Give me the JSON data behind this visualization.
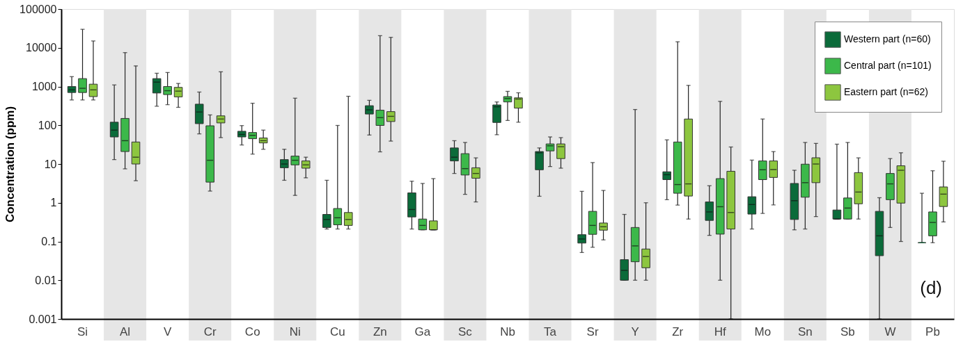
{
  "chart_data": {
    "type": "box",
    "ylabel": "Concentration (ppm)",
    "log": true,
    "grid": false,
    "legend": "top right",
    "ylim": [
      0.001,
      100000
    ],
    "yticks": [
      0.001,
      0.01,
      0.1,
      1,
      10,
      100,
      1000,
      10000,
      100000
    ],
    "categories": [
      "Si",
      "Al",
      "V",
      "Cr",
      "Co",
      "Ni",
      "Cu",
      "Zn",
      "Ga",
      "Sc",
      "Nb",
      "Ta",
      "Sr",
      "Y",
      "Zr",
      "Hf",
      "Mo",
      "Sn",
      "Sb",
      "W",
      "Pb"
    ],
    "bands": [
      {
        "axis": "x",
        "from": "Al",
        "to": "Al",
        "color": "#e6e6e6"
      },
      {
        "axis": "x",
        "from": "Cr",
        "to": "Cr",
        "color": "#e6e6e6"
      },
      {
        "axis": "x",
        "from": "Ni",
        "to": "Ni",
        "color": "#e6e6e6"
      },
      {
        "axis": "x",
        "from": "Zn",
        "to": "Zn",
        "color": "#e6e6e6"
      },
      {
        "axis": "x",
        "from": "Sc",
        "to": "Sc",
        "color": "#e6e6e6"
      },
      {
        "axis": "x",
        "from": "Ta",
        "to": "Ta",
        "color": "#e6e6e6"
      },
      {
        "axis": "x",
        "from": "Y",
        "to": "Y",
        "color": "#e6e6e6"
      },
      {
        "axis": "x",
        "from": "Hf",
        "to": "Hf",
        "color": "#e6e6e6"
      },
      {
        "axis": "x",
        "from": "Sn",
        "to": "Sn",
        "color": "#e6e6e6"
      },
      {
        "axis": "x",
        "from": "W",
        "to": "W",
        "color": "#e6e6e6"
      }
    ],
    "annotations": [
      "(d)"
    ],
    "series": [
      {
        "name": "Western part (n=60)",
        "color": "#0b6b3a",
        "boxes": [
          {
            "low": 450,
            "q1": 700,
            "median": 820,
            "q3": 1000,
            "high": 1800
          },
          {
            "low": 13,
            "q1": 50,
            "median": 75,
            "q3": 120,
            "high": 1100
          },
          {
            "low": 310,
            "q1": 680,
            "median": 1300,
            "q3": 1600,
            "high": 2200
          },
          {
            "low": 60,
            "q1": 110,
            "median": 220,
            "q3": 350,
            "high": 720
          },
          {
            "low": 31,
            "q1": 50,
            "median": 58,
            "q3": 70,
            "high": 98
          },
          {
            "low": 3.8,
            "q1": 8,
            "median": 10,
            "q3": 13,
            "high": 24
          },
          {
            "low": 0.21,
            "q1": 0.23,
            "median": 0.37,
            "q3": 0.5,
            "high": 3.8
          },
          {
            "low": 56,
            "q1": 195,
            "median": 250,
            "q3": 320,
            "high": 440
          },
          {
            "low": 0.21,
            "q1": 0.43,
            "median": 0.67,
            "q3": 1.8,
            "high": 3.6
          },
          {
            "low": 5.7,
            "q1": 12,
            "median": 15,
            "q3": 26,
            "high": 40
          },
          {
            "low": 57,
            "q1": 118,
            "median": 300,
            "q3": 335,
            "high": 400
          },
          {
            "low": 1.47,
            "q1": 7.1,
            "median": 19.5,
            "q3": 21,
            "high": 26
          },
          {
            "low": 0.052,
            "q1": 0.091,
            "median": 0.116,
            "q3": 0.15,
            "high": 1.97
          },
          {
            "low": 0.01,
            "q1": 0.01,
            "median": 0.018,
            "q3": 0.034,
            "high": 0.5
          },
          {
            "low": 1.2,
            "q1": 3.95,
            "median": 5.3,
            "q3": 6.3,
            "high": 42
          },
          {
            "low": 0.144,
            "q1": 0.35,
            "median": 0.58,
            "q3": 1.05,
            "high": 2.75
          },
          {
            "low": 0.21,
            "q1": 0.51,
            "median": 0.9,
            "q3": 1.43,
            "high": 12.6
          },
          {
            "low": 0.2,
            "q1": 0.37,
            "median": 1.13,
            "q3": 3.15,
            "high": 6.9
          },
          {
            "low": 0.38,
            "q1": 0.38,
            "median": 0.38,
            "q3": 0.65,
            "high": 32.5
          },
          {
            "low": 0.001,
            "q1": 0.043,
            "median": 0.14,
            "q3": 0.6,
            "high": 1.35
          },
          {
            "low": 0.093,
            "q1": 0.093,
            "median": 0.093,
            "q3": 0.093,
            "high": 1.76
          }
        ]
      },
      {
        "name": "Central part (n=101)",
        "color": "#3cb84a",
        "boxes": [
          {
            "low": 450,
            "q1": 700,
            "median": 900,
            "q3": 1600,
            "high": 30000
          },
          {
            "low": 7.5,
            "q1": 21,
            "median": 40,
            "q3": 150,
            "high": 7500
          },
          {
            "low": 340,
            "q1": 620,
            "median": 780,
            "q3": 1000,
            "high": 2300
          },
          {
            "low": 2,
            "q1": 3.4,
            "median": 12.5,
            "q3": 97,
            "high": 185
          },
          {
            "low": 18,
            "q1": 45,
            "median": 55,
            "q3": 65,
            "high": 370
          },
          {
            "low": 1.55,
            "q1": 9.5,
            "median": 12.5,
            "q3": 16,
            "high": 500
          },
          {
            "low": 0.21,
            "q1": 0.27,
            "median": 0.41,
            "q3": 0.71,
            "high": 99
          },
          {
            "low": 20.6,
            "q1": 99,
            "median": 157,
            "q3": 245,
            "high": 20500
          },
          {
            "low": 0.2,
            "q1": 0.2,
            "median": 0.26,
            "q3": 0.38,
            "high": 3.15
          },
          {
            "low": 1.65,
            "q1": 5.2,
            "median": 7.6,
            "q3": 18.5,
            "high": 36
          },
          {
            "low": 133,
            "q1": 400,
            "median": 490,
            "q3": 550,
            "high": 750
          },
          {
            "low": 8.6,
            "q1": 21.8,
            "median": 29.5,
            "q3": 33,
            "high": 50
          },
          {
            "low": 0.071,
            "q1": 0.153,
            "median": 0.26,
            "q3": 0.6,
            "high": 10.9
          },
          {
            "low": 0.01,
            "q1": 0.03,
            "median": 0.077,
            "q3": 0.23,
            "high": 255
          },
          {
            "low": 0.87,
            "q1": 1.76,
            "median": 2.95,
            "q3": 37,
            "high": 14300
          },
          {
            "low": 0.01,
            "q1": 0.155,
            "median": 0.79,
            "q3": 4.2,
            "high": 414
          },
          {
            "low": 0.53,
            "q1": 3.95,
            "median": 7.1,
            "q3": 12,
            "high": 145
          },
          {
            "low": 0.21,
            "q1": 1.39,
            "median": 3.3,
            "q3": 9.9,
            "high": 36
          },
          {
            "low": 0.38,
            "q1": 0.38,
            "median": 0.73,
            "q3": 1.33,
            "high": 36
          },
          {
            "low": 0.23,
            "q1": 1.2,
            "median": 3.07,
            "q3": 5.7,
            "high": 13.8
          },
          {
            "low": 0.093,
            "q1": 0.14,
            "median": 0.31,
            "q3": 0.58,
            "high": 6.7
          }
        ]
      },
      {
        "name": "Eastern part (n=62)",
        "color": "#8dc63f",
        "boxes": [
          {
            "low": 450,
            "q1": 550,
            "median": 820,
            "q3": 1150,
            "high": 15000
          },
          {
            "low": 3.7,
            "q1": 10,
            "median": 15,
            "q3": 37,
            "high": 3400
          },
          {
            "low": 290,
            "q1": 540,
            "median": 760,
            "q3": 950,
            "high": 1200
          },
          {
            "low": 48,
            "q1": 115,
            "median": 145,
            "q3": 175,
            "high": 2400
          },
          {
            "low": 24,
            "q1": 35,
            "median": 40,
            "q3": 47,
            "high": 75
          },
          {
            "low": 4.4,
            "q1": 7.8,
            "median": 9.5,
            "q3": 12,
            "high": 15
          },
          {
            "low": 0.21,
            "q1": 0.26,
            "median": 0.37,
            "q3": 0.56,
            "high": 560
          },
          {
            "low": 39,
            "q1": 125,
            "median": 170,
            "q3": 225,
            "high": 18600
          },
          {
            "low": 0.2,
            "q1": 0.2,
            "median": 0.2,
            "q3": 0.34,
            "high": 4.2
          },
          {
            "low": 1.05,
            "q1": 4.3,
            "median": 5.7,
            "q3": 8,
            "high": 14.4
          },
          {
            "low": 120,
            "q1": 277,
            "median": 475,
            "q3": 510,
            "high": 690
          },
          {
            "low": 7.8,
            "q1": 13.8,
            "median": 28,
            "q3": 33,
            "high": 48
          },
          {
            "low": 0.11,
            "q1": 0.196,
            "median": 0.24,
            "q3": 0.3,
            "high": 2.08
          },
          {
            "low": 0.01,
            "q1": 0.021,
            "median": 0.041,
            "q3": 0.064,
            "high": 1.0
          },
          {
            "low": 0.38,
            "q1": 1.49,
            "median": 3.07,
            "q3": 145,
            "high": 1070
          },
          {
            "low": 0.001,
            "q1": 0.21,
            "median": 0.56,
            "q3": 6.5,
            "high": 27.5
          },
          {
            "low": 0.88,
            "q1": 4.5,
            "median": 7.2,
            "q3": 12,
            "high": 21
          },
          {
            "low": 0.44,
            "q1": 3.3,
            "median": 10,
            "q3": 14.5,
            "high": 34
          },
          {
            "low": 0.38,
            "q1": 0.94,
            "median": 1.89,
            "q3": 6,
            "high": 14.4
          },
          {
            "low": 0.1,
            "q1": 0.98,
            "median": 6.9,
            "q3": 9,
            "high": 19.5
          },
          {
            "low": 0.32,
            "q1": 0.8,
            "median": 1.67,
            "q3": 2.56,
            "high": 11.8
          }
        ]
      }
    ]
  }
}
